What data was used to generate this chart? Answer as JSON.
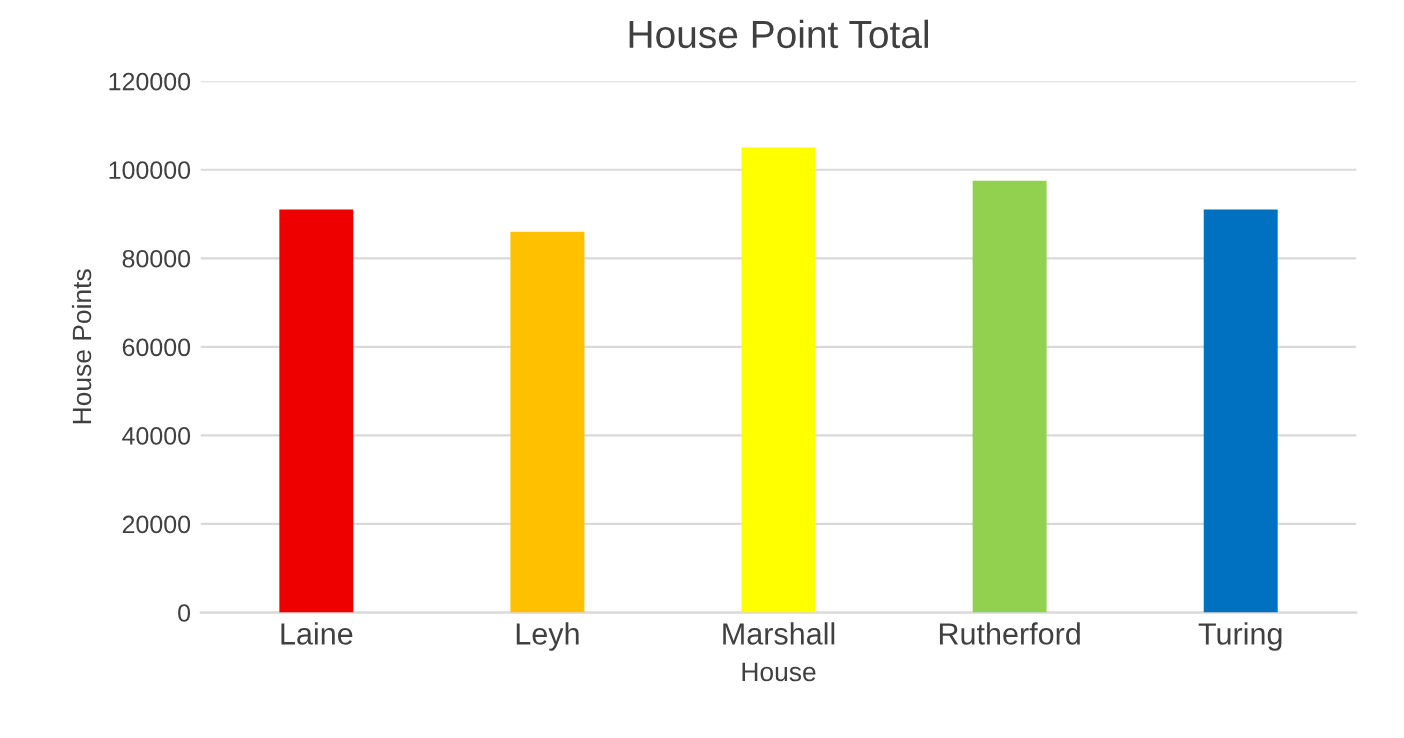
{
  "chart_data": {
    "type": "bar",
    "title": "House Point Total",
    "xlabel": "House",
    "ylabel": "House Points",
    "categories": [
      "Laine",
      "Leyh",
      "Marshall",
      "Rutherford",
      "Turing"
    ],
    "values": [
      91000,
      86000,
      105000,
      97500,
      91000
    ],
    "colors": [
      "#ee0000",
      "#ffc000",
      "#ffff00",
      "#92d050",
      "#0070c0"
    ],
    "ylim": [
      0,
      120000
    ],
    "yticks": [
      0,
      20000,
      40000,
      60000,
      80000,
      100000,
      120000
    ],
    "grid": "y",
    "legend": false
  }
}
